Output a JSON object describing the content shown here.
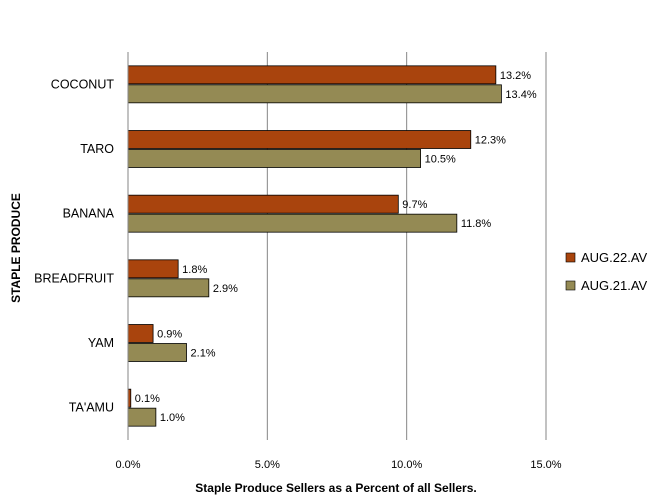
{
  "chart_data": {
    "type": "bar",
    "orientation": "horizontal",
    "categories": [
      "COCONUT",
      "TARO",
      "BANANA",
      "BREADFRUIT",
      "YAM",
      "TA'AMU"
    ],
    "series": [
      {
        "name": "AUG.22.AV",
        "color": "#A9440D",
        "values": [
          13.2,
          12.3,
          9.7,
          1.8,
          0.9,
          0.1
        ],
        "labels": [
          "13.2%",
          "12.3%",
          "9.7%",
          "1.8%",
          "0.9%",
          "0.1%"
        ]
      },
      {
        "name": "AUG.21.AV",
        "color": "#948A54",
        "values": [
          13.4,
          10.5,
          11.8,
          2.9,
          2.1,
          1.0
        ],
        "labels": [
          "13.4%",
          "10.5%",
          "11.8%",
          "2.9%",
          "2.1%",
          "1.0%"
        ]
      }
    ],
    "xlim": [
      0,
      15
    ],
    "xticks": [
      0,
      5,
      10,
      15
    ],
    "xtick_labels": [
      "0.0%",
      "5.0%",
      "10.0%",
      "15.0%"
    ],
    "xlabel": "Staple Produce Sellers as a Percent of all Sellers.",
    "ylabel": "STAPLE PRODUCE",
    "grid": "vertical",
    "legend_position": "right"
  }
}
